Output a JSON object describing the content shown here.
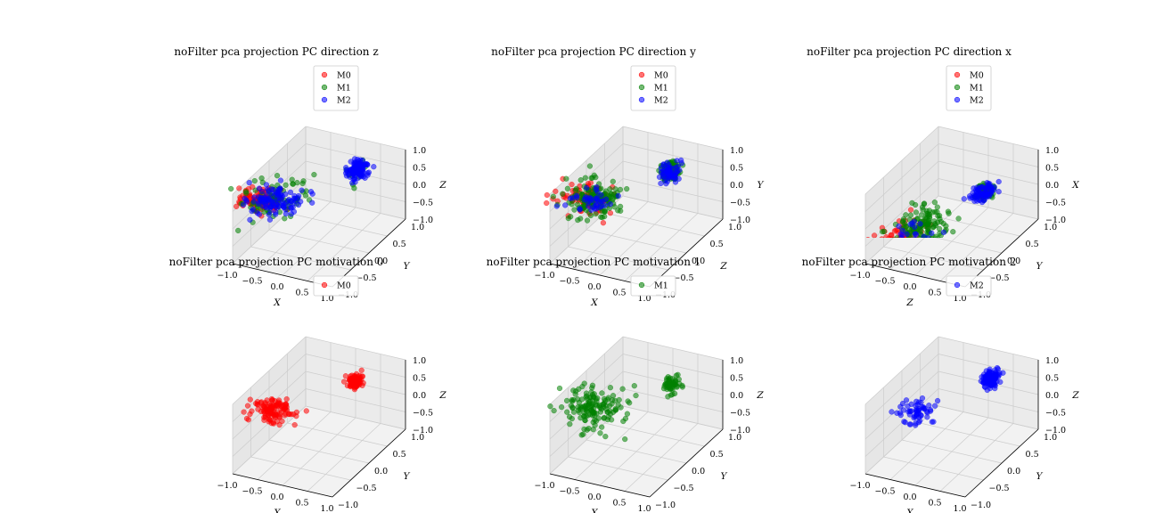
{
  "figure": {
    "background": "#ffffff"
  },
  "colors": {
    "M0": "#ff0000",
    "M1": "#008000",
    "M2": "#0000ff"
  },
  "chart_data": [
    {
      "type": "scatter3d",
      "title": "noFilter pca projection PC direction z",
      "xlabel": "X",
      "ylabel": "Y",
      "zlabel": "Z",
      "xlim": [
        -1.0,
        1.0
      ],
      "ylim": [
        -1.0,
        1.0
      ],
      "zlim": [
        -1.0,
        1.0
      ],
      "x_ticks": [
        "−1.0",
        "−0.5",
        "0.0",
        "0.5",
        "1.0"
      ],
      "y_ticks": [
        "−1.0",
        "−0.5",
        "0.0",
        "0.5",
        "1.0"
      ],
      "z_ticks": [
        "−1.0",
        "−0.5",
        "0.0",
        "0.5",
        "1.0"
      ],
      "grid": true,
      "legend": "top-right",
      "series": [
        {
          "name": "M0",
          "color": "#ff0000",
          "clusters": [
            {
              "center": [
                -1.05,
                -0.15,
                0.0
              ],
              "spread": [
                0.22,
                0.15,
                0.1
              ],
              "count": 110
            }
          ]
        },
        {
          "name": "M1",
          "color": "#008000",
          "clusters": [
            {
              "center": [
                -0.85,
                -0.05,
                0.0
              ],
              "spread": [
                0.3,
                0.22,
                0.18
              ],
              "count": 80
            },
            {
              "center": [
                0.35,
                0.55,
                0.5
              ],
              "spread": [
                0.1,
                0.1,
                0.12
              ],
              "count": 12
            }
          ]
        },
        {
          "name": "M2",
          "color": "#0000ff",
          "clusters": [
            {
              "center": [
                -0.8,
                -0.1,
                0.0
              ],
              "spread": [
                0.25,
                0.18,
                0.1
              ],
              "count": 110
            },
            {
              "center": [
                0.3,
                0.65,
                0.55
              ],
              "spread": [
                0.08,
                0.08,
                0.1
              ],
              "count": 120
            }
          ]
        }
      ]
    },
    {
      "type": "scatter3d",
      "title": "noFilter pca projection PC direction y",
      "xlabel": "X",
      "ylabel": "Z",
      "zlabel": "Y",
      "xlim": [
        -1.0,
        1.0
      ],
      "ylim": [
        -1.0,
        1.0
      ],
      "zlim": [
        -1.0,
        1.0
      ],
      "x_ticks": [
        "−1.0",
        "−0.5",
        "0.0",
        "0.5",
        "1.0"
      ],
      "y_ticks": [
        "−1.0",
        "−0.5",
        "0.0",
        "0.5",
        "1.0"
      ],
      "z_ticks": [
        "−1.0",
        "−0.5",
        "0.0",
        "0.5",
        "1.0"
      ],
      "grid": true,
      "legend": "top-right",
      "series": [
        {
          "name": "M0",
          "color": "#ff0000",
          "clusters": [
            {
              "center": [
                -0.95,
                -0.1,
                0.0
              ],
              "spread": [
                0.25,
                0.18,
                0.1
              ],
              "count": 90
            }
          ]
        },
        {
          "name": "M1",
          "color": "#008000",
          "clusters": [
            {
              "center": [
                -0.8,
                -0.05,
                0.0
              ],
              "spread": [
                0.28,
                0.2,
                0.15
              ],
              "count": 150
            },
            {
              "center": [
                0.25,
                0.6,
                0.55
              ],
              "spread": [
                0.08,
                0.08,
                0.12
              ],
              "count": 110
            }
          ]
        },
        {
          "name": "M2",
          "color": "#0000ff",
          "clusters": [
            {
              "center": [
                -0.85,
                -0.1,
                0.0
              ],
              "spread": [
                0.2,
                0.15,
                0.08
              ],
              "count": 40
            },
            {
              "center": [
                0.25,
                0.6,
                0.5
              ],
              "spread": [
                0.08,
                0.08,
                0.1
              ],
              "count": 60
            }
          ]
        }
      ]
    },
    {
      "type": "scatter3d",
      "title": "noFilter pca projection PC direction x",
      "xlabel": "Z",
      "ylabel": "Y",
      "zlabel": "X",
      "xlim": [
        -1.0,
        1.0
      ],
      "ylim": [
        -1.0,
        1.0
      ],
      "zlim": [
        -1.0,
        1.0
      ],
      "x_ticks": [
        "−1.0",
        "−0.5",
        "0.0",
        "0.5",
        "1.0"
      ],
      "y_ticks": [
        "−1.0",
        "−0.5",
        "0.0",
        "0.5",
        "1.0"
      ],
      "z_ticks": [
        "−1.0",
        "−0.5",
        "0.0",
        "0.5",
        "1.0"
      ],
      "grid": true,
      "legend": "top-right",
      "series": [
        {
          "name": "M0",
          "color": "#ff0000",
          "clusters": [
            {
              "center": [
                -0.75,
                -0.45,
                -0.85
              ],
              "spread": [
                0.25,
                0.25,
                0.2
              ],
              "count": 120
            }
          ]
        },
        {
          "name": "M1",
          "color": "#008000",
          "clusters": [
            {
              "center": [
                -0.45,
                -0.2,
                -0.55
              ],
              "spread": [
                0.22,
                0.22,
                0.2
              ],
              "count": 150
            },
            {
              "center": [
                0.45,
                0.3,
                0.3
              ],
              "spread": [
                0.08,
                0.08,
                0.08
              ],
              "count": 60
            }
          ]
        },
        {
          "name": "M2",
          "color": "#0000ff",
          "clusters": [
            {
              "center": [
                0.4,
                0.3,
                0.25
              ],
              "spread": [
                0.12,
                0.12,
                0.1
              ],
              "count": 70
            },
            {
              "center": [
                -0.5,
                -0.25,
                -0.6
              ],
              "spread": [
                0.18,
                0.18,
                0.15
              ],
              "count": 20
            }
          ]
        }
      ]
    },
    {
      "type": "scatter3d",
      "title": "noFilter pca projection PC motivation 0",
      "xlabel": "X",
      "ylabel": "Y",
      "zlabel": "Z",
      "xlim": [
        -1.0,
        1.0
      ],
      "ylim": [
        -1.0,
        1.0
      ],
      "zlim": [
        -1.0,
        1.0
      ],
      "x_ticks": [
        "−1.0",
        "−0.5",
        "0.0",
        "0.5",
        "1.0"
      ],
      "y_ticks": [
        "−1.0",
        "−0.5",
        "0.0",
        "0.5",
        "1.0"
      ],
      "z_ticks": [
        "−1.0",
        "−0.5",
        "0.0",
        "0.5",
        "1.0"
      ],
      "grid": true,
      "legend": "top-right",
      "series": [
        {
          "name": "M0",
          "color": "#ff0000",
          "clusters": [
            {
              "center": [
                -0.85,
                -0.1,
                0.0
              ],
              "spread": [
                0.22,
                0.14,
                0.1
              ],
              "count": 120
            },
            {
              "center": [
                0.3,
                0.6,
                0.55
              ],
              "spread": [
                0.06,
                0.06,
                0.08
              ],
              "count": 90
            }
          ]
        }
      ]
    },
    {
      "type": "scatter3d",
      "title": "noFilter pca projection PC motivation 1",
      "xlabel": "X",
      "ylabel": "Y",
      "zlabel": "Z",
      "xlim": [
        -1.0,
        1.0
      ],
      "ylim": [
        -1.0,
        1.0
      ],
      "zlim": [
        -1.0,
        1.0
      ],
      "x_ticks": [
        "−1.0",
        "−0.5",
        "0.0",
        "0.5",
        "1.0"
      ],
      "y_ticks": [
        "−1.0",
        "−0.5",
        "0.0",
        "0.5",
        "1.0"
      ],
      "z_ticks": [
        "−1.0",
        "−0.5",
        "0.0",
        "0.5",
        "1.0"
      ],
      "grid": true,
      "legend": "top-right",
      "series": [
        {
          "name": "M1",
          "color": "#008000",
          "clusters": [
            {
              "center": [
                -0.8,
                -0.05,
                0.0
              ],
              "spread": [
                0.28,
                0.2,
                0.18
              ],
              "count": 150
            },
            {
              "center": [
                0.3,
                0.55,
                0.5
              ],
              "spread": [
                0.08,
                0.08,
                0.12
              ],
              "count": 50
            }
          ]
        }
      ]
    },
    {
      "type": "scatter3d",
      "title": "noFilter pca projection PC motivation 2",
      "xlabel": "X",
      "ylabel": "Y",
      "zlabel": "Z",
      "xlim": [
        -1.0,
        1.0
      ],
      "ylim": [
        -1.0,
        1.0
      ],
      "zlim": [
        -1.0,
        1.0
      ],
      "x_ticks": [
        "−1.0",
        "−0.5",
        "0.0",
        "0.5",
        "1.0"
      ],
      "y_ticks": [
        "−1.0",
        "−0.5",
        "0.0",
        "0.5",
        "1.0"
      ],
      "z_ticks": [
        "−1.0",
        "−0.5",
        "0.0",
        "0.5",
        "1.0"
      ],
      "grid": true,
      "legend": "top-right",
      "series": [
        {
          "name": "M2",
          "color": "#0000ff",
          "clusters": [
            {
              "center": [
                -0.6,
                -0.1,
                0.0
              ],
              "spread": [
                0.2,
                0.14,
                0.1
              ],
              "count": 60
            },
            {
              "center": [
                0.3,
                0.65,
                0.55
              ],
              "spread": [
                0.07,
                0.07,
                0.1
              ],
              "count": 120
            }
          ]
        }
      ]
    }
  ]
}
